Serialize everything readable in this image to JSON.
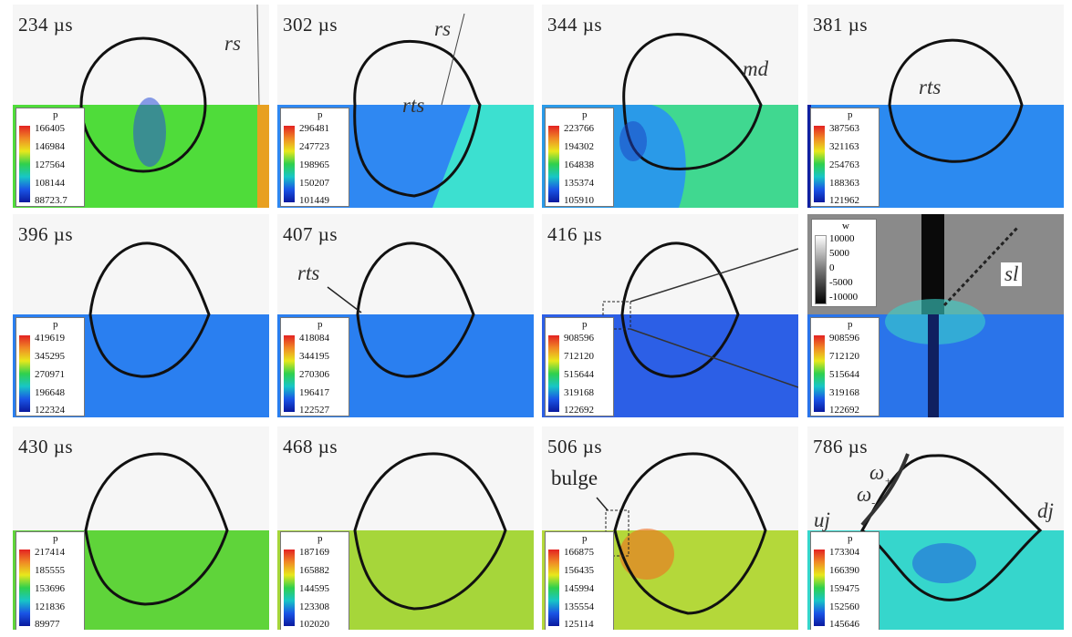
{
  "legend_title": "p",
  "vorticity_legend": {
    "title": "w",
    "values": [
      "10000",
      "5000",
      "0",
      "-5000",
      "-10000"
    ]
  },
  "panels": [
    {
      "time": "234 µs",
      "bg": "#4fdc3a",
      "legend": [
        "166405",
        "146984",
        "127564",
        "108144",
        "88723.7"
      ]
    },
    {
      "time": "302 µs",
      "bg": "#2f88f2",
      "legend": [
        "296481",
        "247723",
        "198965",
        "150207",
        "101449"
      ]
    },
    {
      "time": "344 µs",
      "bg": "#2a9ae8",
      "legend": [
        "223766",
        "194302",
        "164838",
        "135374",
        "105910"
      ]
    },
    {
      "time": "381 µs",
      "bg": "#2c8af0",
      "legend": [
        "387563",
        "321163",
        "254763",
        "188363",
        "121962"
      ]
    },
    {
      "time": "396 µs",
      "bg": "#2a7ff0",
      "legend": [
        "419619",
        "345295",
        "270971",
        "196648",
        "122324"
      ]
    },
    {
      "time": "407 µs",
      "bg": "#2a7ff0",
      "legend": [
        "418084",
        "344195",
        "270306",
        "196417",
        "122527"
      ]
    },
    {
      "time": "416 µs",
      "bg": "#2c5fe6",
      "legend": [
        "908596",
        "712120",
        "515644",
        "319168",
        "122692"
      ]
    },
    {
      "time": "",
      "bg": "#2a74ea",
      "legend": [
        "908596",
        "712120",
        "515644",
        "319168",
        "122692"
      ]
    },
    {
      "time": "430 µs",
      "bg": "#5fd43a",
      "legend": [
        "217414",
        "185555",
        "153696",
        "121836",
        "89977"
      ]
    },
    {
      "time": "468 µs",
      "bg": "#a6d63a",
      "legend": [
        "187169",
        "165882",
        "144595",
        "123308",
        "102020"
      ]
    },
    {
      "time": "506 µs",
      "bg": "#b4d83a",
      "legend": [
        "166875",
        "156435",
        "145994",
        "135554",
        "125114"
      ]
    },
    {
      "time": "786 µs",
      "bg": "#36d6cc",
      "legend": [
        "173304",
        "166390",
        "159475",
        "152560",
        "145646"
      ]
    }
  ],
  "annotations": {
    "rs1": "rs",
    "rs2": "rs",
    "rts2": "rts",
    "md": "md",
    "rts4": "rts",
    "rts6": "rts",
    "sl": "sl",
    "bulge": "bulge",
    "uj": "uj",
    "dj": "dj",
    "omega_plus": "ω",
    "omega_plus_sign": "+",
    "omega_minus": "ω",
    "omega_minus_sign": "-"
  }
}
